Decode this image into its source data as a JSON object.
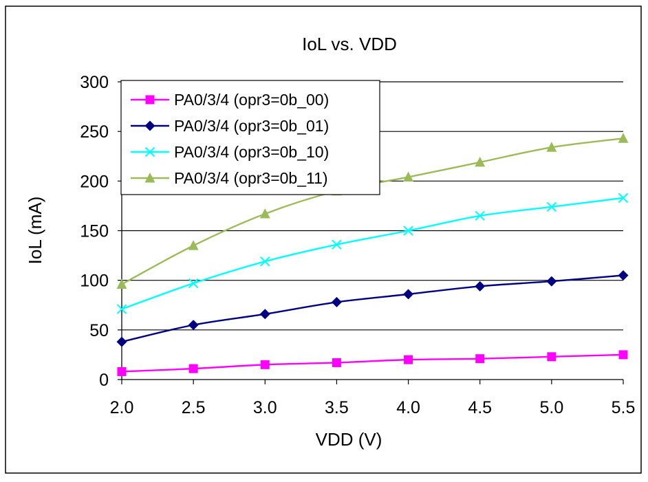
{
  "chart_data": {
    "type": "line",
    "title": "IoL vs. VDD",
    "xlabel": "VDD (V)",
    "ylabel": "IoL (mA)",
    "x": [
      2.0,
      2.5,
      3.0,
      3.5,
      4.0,
      4.5,
      5.0,
      5.5
    ],
    "x_tick_labels": [
      "2.0",
      "2.5",
      "3.0",
      "3.5",
      "4.0",
      "4.5",
      "5.0",
      "5.5"
    ],
    "xlim": [
      2.0,
      5.5
    ],
    "ylim": [
      0,
      300
    ],
    "y_ticks": [
      0,
      50,
      100,
      150,
      200,
      250,
      300
    ],
    "grid": "horizontal major gridlines",
    "legend_position": "top-left",
    "series": [
      {
        "name": "PA0/3/4 (opr3=0b_00)",
        "color": "#FF00FF",
        "marker": "square",
        "values": [
          8,
          11,
          15,
          17,
          20,
          21,
          23,
          25
        ]
      },
      {
        "name": "PA0/3/4 (opr3=0b_01)",
        "color": "#000080",
        "marker": "diamond",
        "values": [
          38,
          55,
          66,
          78,
          86,
          94,
          99,
          105
        ]
      },
      {
        "name": "PA0/3/4 (opr3=0b_10)",
        "color": "#00FFFF",
        "marker": "x",
        "values": [
          71,
          97,
          119,
          136,
          150,
          165,
          174,
          183
        ]
      },
      {
        "name": "PA0/3/4 (opr3=0b_11)",
        "color": "#9BBB59",
        "marker": "triangle",
        "values": [
          96,
          135,
          167,
          190,
          204,
          219,
          234,
          243
        ]
      }
    ]
  }
}
